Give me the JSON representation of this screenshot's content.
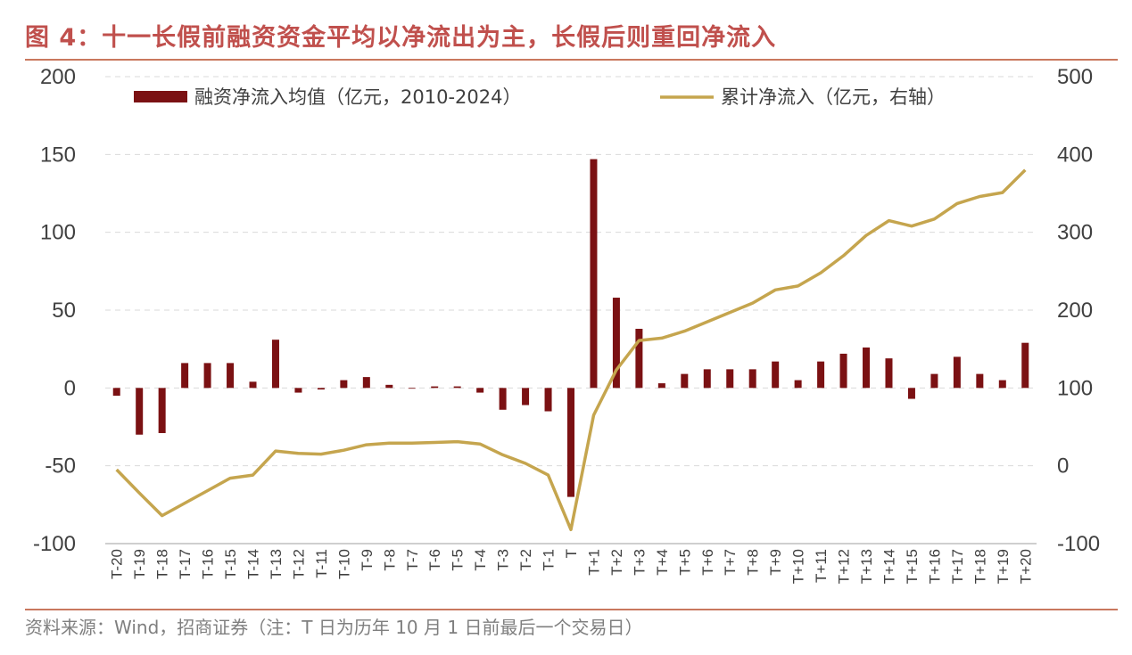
{
  "header": {
    "title": "图 4：十一长假前融资资金平均以净流出为主，长假后则重回净流入"
  },
  "footer": {
    "source": "资料来源：Wind，招商证券（注：T 日为历年 10 月 1 日前最后一个交易日）"
  },
  "chart_data": {
    "type": "bar+line",
    "categories": [
      "T-20",
      "T-19",
      "T-18",
      "T-17",
      "T-16",
      "T-15",
      "T-14",
      "T-13",
      "T-12",
      "T-11",
      "T-10",
      "T-9",
      "T-8",
      "T-7",
      "T-6",
      "T-5",
      "T-4",
      "T-3",
      "T-2",
      "T-1",
      "T",
      "T+1",
      "T+2",
      "T+3",
      "T+4",
      "T+5",
      "T+6",
      "T+7",
      "T+8",
      "T+9",
      "T+10",
      "T+11",
      "T+12",
      "T+13",
      "T+14",
      "T+15",
      "T+16",
      "T+17",
      "T+18",
      "T+19",
      "T+20"
    ],
    "series": [
      {
        "name": "融资净流入均值（亿元，2010-2024）",
        "type": "bar",
        "axis": "left",
        "color": "#7b1113",
        "values": [
          -5,
          -30,
          -29,
          16,
          16,
          16,
          4,
          31,
          -3,
          -1,
          5,
          7,
          2,
          0,
          1,
          1,
          -3,
          -14,
          -11,
          -15,
          -70,
          147,
          58,
          38,
          3,
          9,
          12,
          12,
          12,
          17,
          5,
          17,
          22,
          26,
          19,
          -7,
          9,
          20,
          9,
          5,
          29
        ]
      },
      {
        "name": "累计净流入（亿元，右轴）",
        "type": "line",
        "axis": "right",
        "color": "#c5a54e",
        "values": [
          -5,
          -35,
          -64,
          -48,
          -32,
          -16,
          -12,
          19,
          16,
          15,
          20,
          27,
          29,
          29,
          30,
          31,
          28,
          14,
          3,
          -12,
          -82,
          65,
          123,
          161,
          164,
          173,
          185,
          197,
          209,
          226,
          231,
          248,
          270,
          296,
          315,
          308,
          317,
          337,
          346,
          351,
          380
        ]
      }
    ],
    "left_axis": {
      "ylim": [
        -100,
        200
      ],
      "ticks": [
        "-100",
        "-50",
        "0",
        "50",
        "100",
        "150",
        "200"
      ]
    },
    "right_axis": {
      "ylim": [
        -100,
        500
      ],
      "ticks": [
        "-100",
        "0",
        "100",
        "200",
        "300",
        "400",
        "500"
      ]
    },
    "grid": true,
    "legend": "top"
  }
}
